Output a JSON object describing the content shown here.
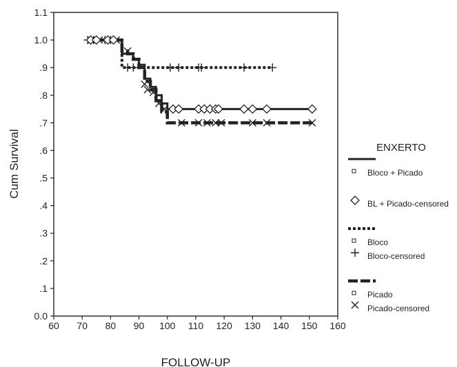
{
  "chart_data": {
    "type": "line",
    "xlabel": "FOLLOW-UP",
    "ylabel": "Cum Survival",
    "xlim": [
      60,
      160
    ],
    "ylim": [
      0,
      1.1
    ],
    "x_ticks": [
      60,
      70,
      80,
      90,
      100,
      110,
      120,
      130,
      140,
      150,
      160
    ],
    "x_tick_labels": [
      "60",
      "70",
      "80",
      "90",
      "100",
      "110",
      "120",
      "130",
      "140",
      "150",
      "160"
    ],
    "y_ticks": [
      0,
      0.1,
      0.2,
      0.3,
      0.4,
      0.5,
      0.6,
      0.7,
      0.8,
      0.9,
      1.0,
      1.1
    ],
    "y_tick_labels": [
      "0.0",
      ".1",
      ".2",
      ".3",
      ".4",
      ".5",
      ".6",
      ".7",
      ".8",
      ".9",
      "1.0",
      "1.1"
    ],
    "grid": false,
    "legend_position": "right",
    "legend": {
      "title": "ENXERTO",
      "entries": [
        {
          "label": "Bloco + Picado",
          "kind": "line",
          "style": "solid"
        },
        {
          "label": "BL + Picado-censored",
          "kind": "marker",
          "marker": "diamond"
        },
        {
          "label": "Bloco",
          "kind": "line",
          "style": "dotted"
        },
        {
          "label": "Bloco-censored",
          "kind": "marker",
          "marker": "plus"
        },
        {
          "label": "Picado",
          "kind": "line",
          "style": "dashed"
        },
        {
          "label": "Picado-censored",
          "kind": "marker",
          "marker": "x"
        }
      ]
    },
    "series": [
      {
        "name": "Bloco + Picado",
        "style": "solid",
        "marker": "diamond",
        "steps": [
          [
            72,
            1.0
          ],
          [
            84,
            0.95
          ],
          [
            88,
            0.93
          ],
          [
            90,
            0.91
          ],
          [
            92,
            0.86
          ],
          [
            94,
            0.83
          ],
          [
            96,
            0.8
          ],
          [
            98,
            0.77
          ],
          [
            100,
            0.75
          ],
          [
            151,
            0.75
          ]
        ],
        "censored": [
          [
            73,
            1.0
          ],
          [
            75,
            1.0
          ],
          [
            79,
            1.0
          ],
          [
            81,
            1.0
          ],
          [
            102,
            0.75
          ],
          [
            104,
            0.75
          ],
          [
            111,
            0.75
          ],
          [
            113,
            0.75
          ],
          [
            115,
            0.75
          ],
          [
            117,
            0.75
          ],
          [
            118,
            0.75
          ],
          [
            127,
            0.75
          ],
          [
            130,
            0.75
          ],
          [
            135,
            0.75
          ],
          [
            151,
            0.75
          ]
        ]
      },
      {
        "name": "Bloco",
        "style": "dotted",
        "marker": "plus",
        "steps": [
          [
            72,
            1.0
          ],
          [
            84,
            0.9
          ],
          [
            137,
            0.9
          ]
        ],
        "censored": [
          [
            72,
            1.0
          ],
          [
            74,
            1.0
          ],
          [
            78,
            1.0
          ],
          [
            80,
            1.0
          ],
          [
            86,
            0.9
          ],
          [
            88,
            0.9
          ],
          [
            101,
            0.9
          ],
          [
            104,
            0.9
          ],
          [
            111,
            0.9
          ],
          [
            112,
            0.9
          ],
          [
            127,
            0.9
          ],
          [
            137,
            0.9
          ]
        ]
      },
      {
        "name": "Picado",
        "style": "dashed",
        "marker": "x",
        "steps": [
          [
            72,
            1.0
          ],
          [
            84,
            0.96
          ],
          [
            86,
            0.95
          ],
          [
            88,
            0.93
          ],
          [
            90,
            0.9
          ],
          [
            92,
            0.85
          ],
          [
            94,
            0.82
          ],
          [
            96,
            0.78
          ],
          [
            98,
            0.74
          ],
          [
            100,
            0.7
          ],
          [
            151,
            0.7
          ]
        ],
        "censored": [
          [
            73,
            1.0
          ],
          [
            76,
            1.0
          ],
          [
            80,
            1.0
          ],
          [
            82,
            1.0
          ],
          [
            86,
            0.96
          ],
          [
            92,
            0.84
          ],
          [
            93,
            0.82
          ],
          [
            95,
            0.81
          ],
          [
            97,
            0.77
          ],
          [
            99,
            0.75
          ],
          [
            105,
            0.7
          ],
          [
            111,
            0.7
          ],
          [
            114,
            0.7
          ],
          [
            117,
            0.7
          ],
          [
            119,
            0.7
          ],
          [
            130,
            0.7
          ],
          [
            135,
            0.7
          ],
          [
            151,
            0.7
          ]
        ]
      }
    ]
  }
}
